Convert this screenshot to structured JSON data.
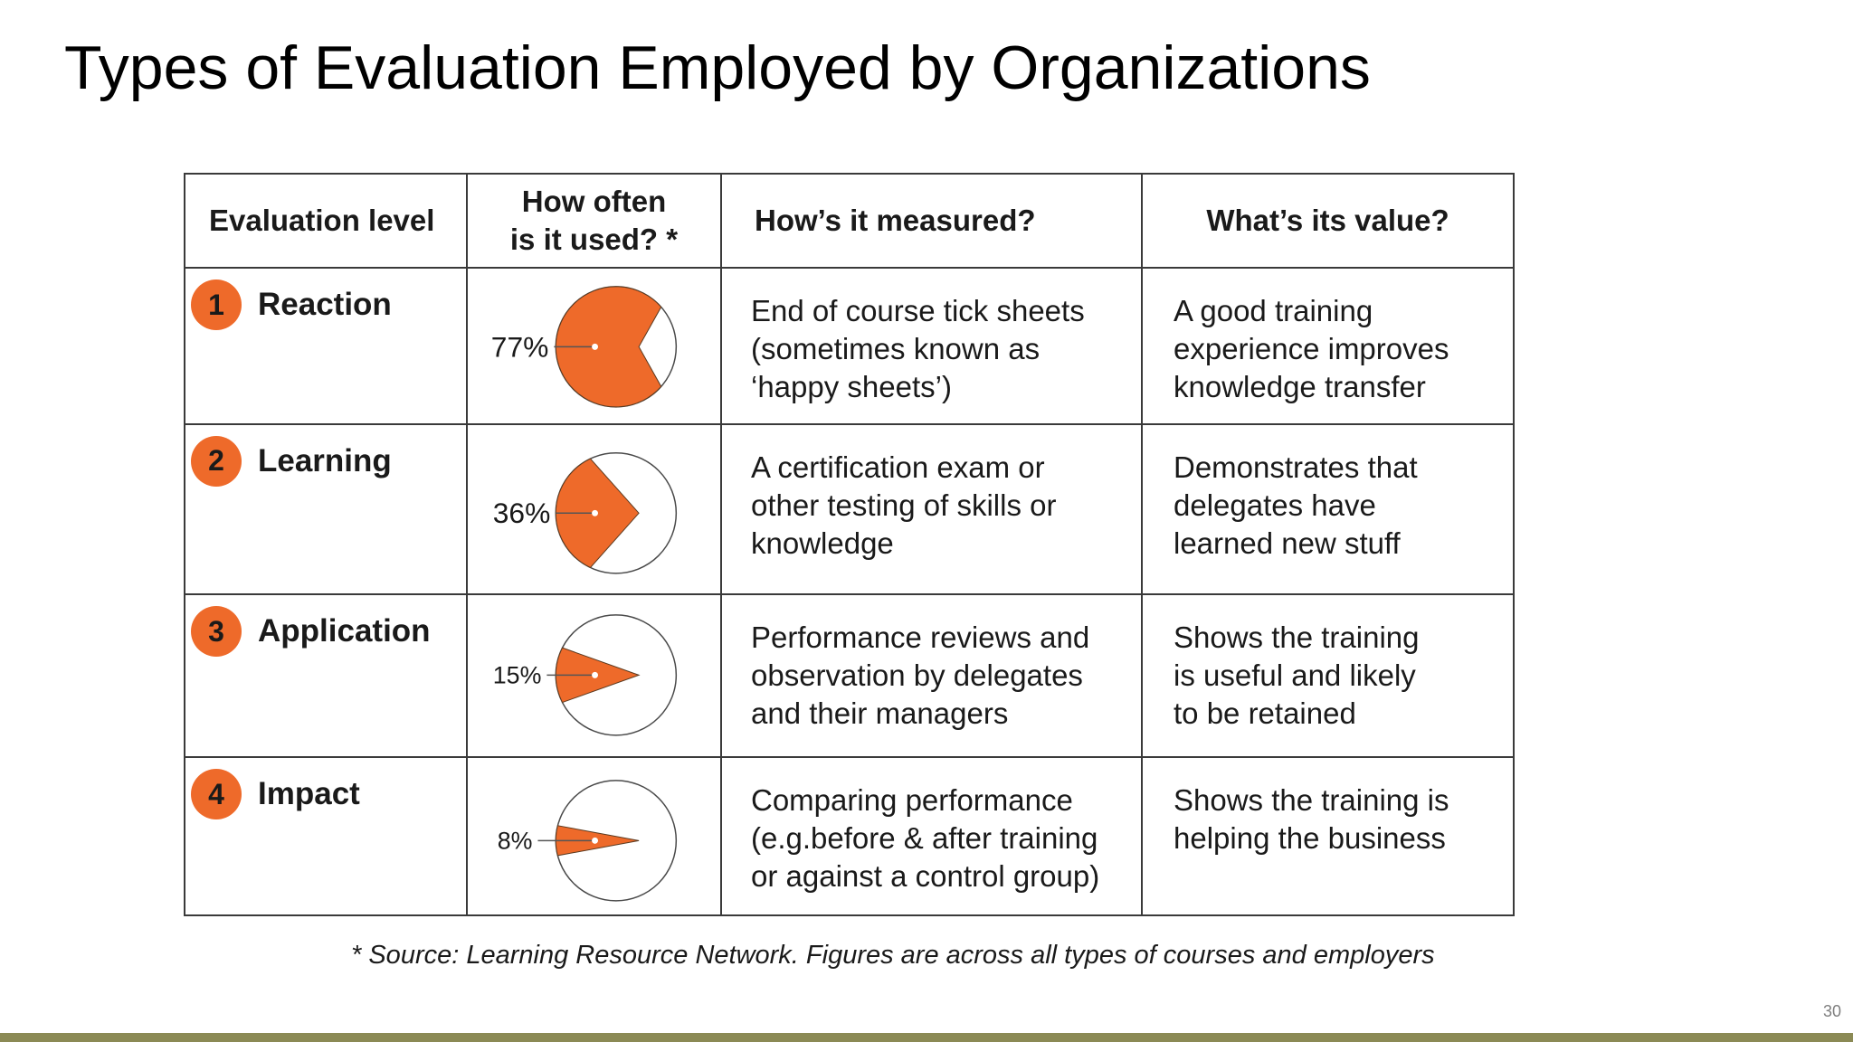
{
  "title": "Types of Evaluation Employed by Organizations",
  "table": {
    "headers": {
      "level": "Evaluation level",
      "usage": "How often\nis it used? *",
      "measured": "How’s it measured?",
      "value": "What’s its value?"
    },
    "rows": [
      {
        "number": "1",
        "level": "Reaction",
        "usage_label": "77%",
        "usage_fraction": 0.77,
        "measured": "End of course tick sheets\n(sometimes known as\n‘happy sheets’)",
        "value": "A good training\nexperience improves\nknowledge transfer"
      },
      {
        "number": "2",
        "level": "Learning",
        "usage_label": "36%",
        "usage_fraction": 0.36,
        "measured": "A certification exam or\nother testing of skills or\nknowledge",
        "value": "Demonstrates that\ndelegates have\nlearned new stuff"
      },
      {
        "number": "3",
        "level": "Application",
        "usage_label": "15%",
        "usage_fraction": 0.15,
        "measured": "Performance reviews and\nobservation by delegates\nand their managers",
        "value": "Shows the training\nis useful and likely\nto be retained"
      },
      {
        "number": "4",
        "level": "Impact",
        "usage_label": "8%",
        "usage_fraction": 0.08,
        "measured": "Comparing performance\n(e.g.before & after training\nor against a control group)",
        "value": "Shows the training is\nhelping the business"
      }
    ]
  },
  "source_note": "* Source: Learning Resource Network. Figures are across all types of courses and employers",
  "page_number": "30",
  "colors": {
    "accent": "#ee6a2a",
    "footer_bar": "#8b8a55",
    "border": "#3a3a3a"
  }
}
